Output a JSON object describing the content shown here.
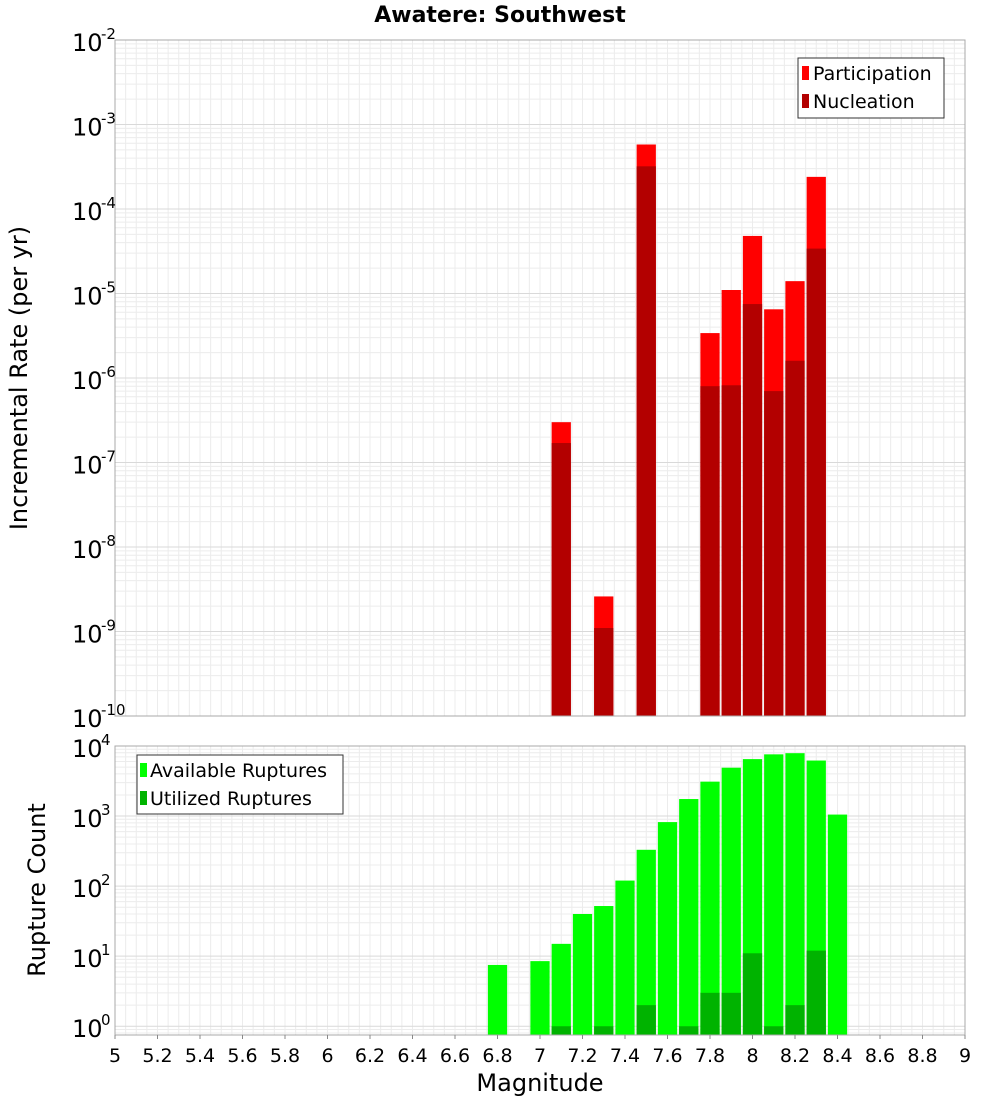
{
  "chart_data": [
    {
      "type": "bar",
      "title": "Awatere: Southwest",
      "xlabel": "",
      "ylabel": "Incremental Rate (per yr)",
      "yscale": "log",
      "ylim": [
        1e-10,
        0.01
      ],
      "xlim": [
        5,
        9
      ],
      "y_ticks": [
        {
          "base": "10",
          "exp": "-10"
        },
        {
          "base": "10",
          "exp": "-9"
        },
        {
          "base": "10",
          "exp": "-8"
        },
        {
          "base": "10",
          "exp": "-7"
        },
        {
          "base": "10",
          "exp": "-6"
        },
        {
          "base": "10",
          "exp": "-5"
        },
        {
          "base": "10",
          "exp": "-4"
        },
        {
          "base": "10",
          "exp": "-3"
        },
        {
          "base": "10",
          "exp": "-2"
        }
      ],
      "grid": true,
      "legend_position": "top-right",
      "series": [
        {
          "name": "Participation",
          "color": "#ff0000",
          "points": [
            {
              "x": 7.1,
              "y": 3e-07
            },
            {
              "x": 7.3,
              "y": 2.6e-09
            },
            {
              "x": 7.5,
              "y": 0.00058
            },
            {
              "x": 7.8,
              "y": 3.4e-06
            },
            {
              "x": 7.9,
              "y": 1.1e-05
            },
            {
              "x": 8.0,
              "y": 4.8e-05
            },
            {
              "x": 8.1,
              "y": 6.5e-06
            },
            {
              "x": 8.2,
              "y": 1.4e-05
            },
            {
              "x": 8.3,
              "y": 0.00024
            }
          ]
        },
        {
          "name": "Nucleation",
          "color": "#b30000",
          "points": [
            {
              "x": 7.1,
              "y": 1.7e-07
            },
            {
              "x": 7.3,
              "y": 1.1e-09
            },
            {
              "x": 7.5,
              "y": 0.00032
            },
            {
              "x": 7.8,
              "y": 8e-07
            },
            {
              "x": 7.9,
              "y": 8.2e-07
            },
            {
              "x": 8.0,
              "y": 7.5e-06
            },
            {
              "x": 8.1,
              "y": 7e-07
            },
            {
              "x": 8.2,
              "y": 1.6e-06
            },
            {
              "x": 8.3,
              "y": 3.4e-05
            }
          ]
        }
      ]
    },
    {
      "type": "bar",
      "title": "",
      "xlabel": "Magnitude",
      "ylabel": "Rupture Count",
      "yscale": "log",
      "ylim": [
        0.75,
        10000
      ],
      "xlim": [
        5,
        9
      ],
      "x_ticks": [
        "5",
        "5.2",
        "5.4",
        "5.6",
        "5.8",
        "6",
        "6.2",
        "6.4",
        "6.6",
        "6.8",
        "7",
        "7.2",
        "7.4",
        "7.6",
        "7.8",
        "8",
        "8.2",
        "8.4",
        "8.6",
        "8.8",
        "9"
      ],
      "y_ticks": [
        {
          "base": "10",
          "exp": "0"
        },
        {
          "base": "10",
          "exp": "1"
        },
        {
          "base": "10",
          "exp": "2"
        },
        {
          "base": "10",
          "exp": "3"
        },
        {
          "base": "10",
          "exp": "4"
        }
      ],
      "grid": true,
      "legend_position": "top-left",
      "series": [
        {
          "name": "Available Ruptures",
          "color": "#00ff00",
          "points": [
            {
              "x": 6.8,
              "y": 7.5
            },
            {
              "x": 7.0,
              "y": 8.5
            },
            {
              "x": 7.1,
              "y": 15
            },
            {
              "x": 7.2,
              "y": 40
            },
            {
              "x": 7.3,
              "y": 52
            },
            {
              "x": 7.4,
              "y": 120
            },
            {
              "x": 7.5,
              "y": 330
            },
            {
              "x": 7.6,
              "y": 820
            },
            {
              "x": 7.7,
              "y": 1750
            },
            {
              "x": 7.8,
              "y": 3100
            },
            {
              "x": 7.9,
              "y": 4900
            },
            {
              "x": 8.0,
              "y": 6500
            },
            {
              "x": 8.1,
              "y": 7600
            },
            {
              "x": 8.2,
              "y": 7900
            },
            {
              "x": 8.3,
              "y": 6200
            },
            {
              "x": 8.4,
              "y": 1050
            }
          ]
        },
        {
          "name": "Utilized Ruptures",
          "color": "#00b300",
          "points": [
            {
              "x": 7.1,
              "y": 1
            },
            {
              "x": 7.3,
              "y": 1
            },
            {
              "x": 7.5,
              "y": 2
            },
            {
              "x": 7.7,
              "y": 1
            },
            {
              "x": 7.8,
              "y": 3
            },
            {
              "x": 7.9,
              "y": 3
            },
            {
              "x": 8.0,
              "y": 11
            },
            {
              "x": 8.1,
              "y": 1
            },
            {
              "x": 8.2,
              "y": 2
            },
            {
              "x": 8.3,
              "y": 12
            }
          ]
        }
      ]
    }
  ]
}
